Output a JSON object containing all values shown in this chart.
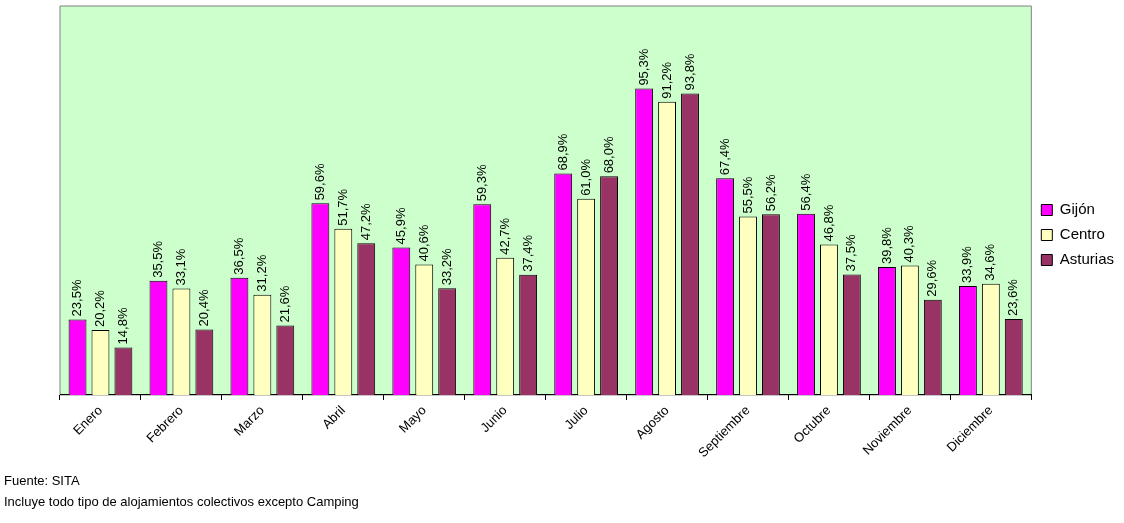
{
  "chart_data": {
    "type": "bar",
    "categories": [
      "Enero",
      "Febrero",
      "Marzo",
      "Abril",
      "Mayo",
      "Junio",
      "Julio",
      "Agosto",
      "Septiembre",
      "Octubre",
      "Noviembre",
      "Diciembre"
    ],
    "series": [
      {
        "name": "Gijón",
        "color": "#ff00ff",
        "values": [
          23.5,
          35.5,
          36.5,
          59.6,
          45.9,
          59.3,
          68.9,
          95.3,
          67.4,
          56.4,
          39.8,
          33.9
        ],
        "value_labels": [
          "23,5%",
          "35,5%",
          "36,5%",
          "59,6%",
          "45,9%",
          "59,3%",
          "68,9%",
          "95,3%",
          "67,4%",
          "56,4%",
          "39,8%",
          "33,9%"
        ]
      },
      {
        "name": "Centro",
        "color": "#ffffc0",
        "values": [
          20.2,
          33.1,
          31.2,
          51.7,
          40.6,
          42.7,
          61.0,
          91.2,
          55.5,
          46.8,
          40.3,
          34.6
        ],
        "value_labels": [
          "20,2%",
          "33,1%",
          "31,2%",
          "51,7%",
          "40,6%",
          "42,7%",
          "61,0%",
          "91,2%",
          "55,5%",
          "46,8%",
          "40,3%",
          "34,6%"
        ]
      },
      {
        "name": "Asturias",
        "color": "#993366",
        "values": [
          14.8,
          20.4,
          21.6,
          47.2,
          33.2,
          37.4,
          68.0,
          93.8,
          56.2,
          37.5,
          29.6,
          23.6
        ],
        "value_labels": [
          "14,8%",
          "20,4%",
          "21,6%",
          "47,2%",
          "33,2%",
          "37,4%",
          "68,0%",
          "93,8%",
          "56,2%",
          "37,5%",
          "29,6%",
          "23,6%"
        ]
      }
    ],
    "ylim": [
      0,
      121
    ],
    "tick_labels": "x",
    "grid": false,
    "legend": "right",
    "annotations": [
      "Fuente: SITA",
      "Incluye todo tipo de alojamientos colectivos excepto Camping"
    ]
  }
}
